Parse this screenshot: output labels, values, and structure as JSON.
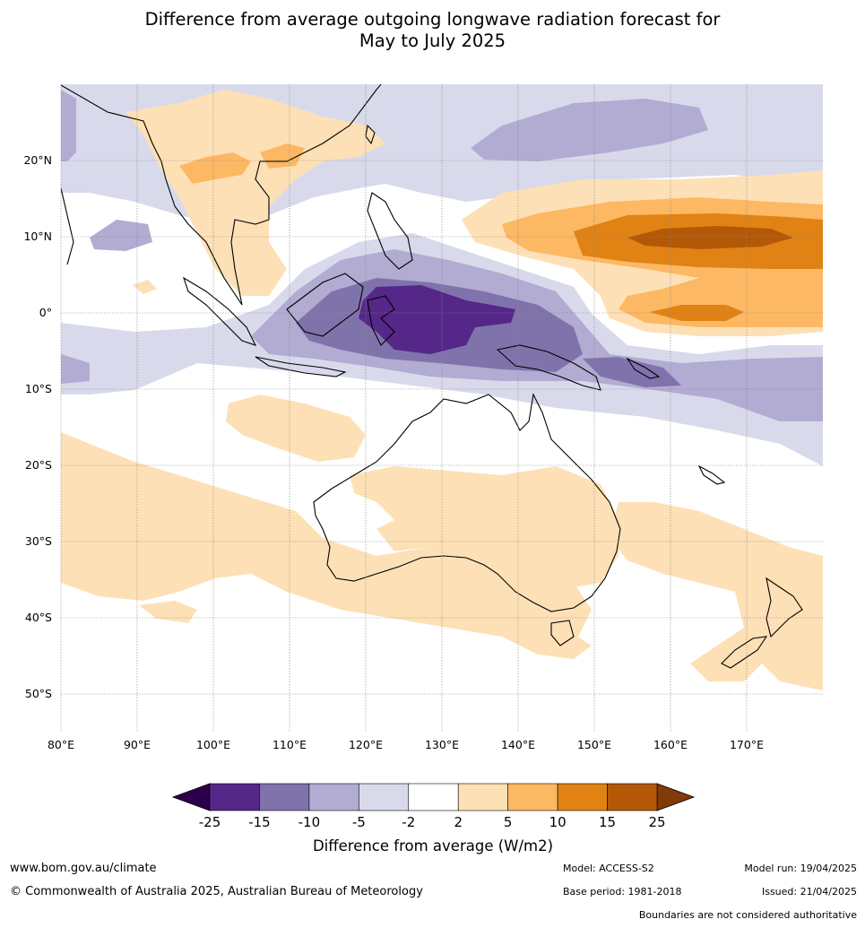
{
  "title_line1": "Difference from average outgoing longwave radiation forecast for",
  "title_line2": "May to July 2025",
  "lat_labels": [
    "20°N",
    "10°N",
    "0°",
    "10°S",
    "20°S",
    "30°S",
    "40°S",
    "50°S"
  ],
  "lon_labels": [
    "80°E",
    "90°E",
    "100°E",
    "110°E",
    "120°E",
    "130°E",
    "140°E",
    "150°E",
    "160°E",
    "170°E"
  ],
  "colorbar": {
    "ticks": [
      "-25",
      "-15",
      "-10",
      "-5",
      "-2",
      "2",
      "5",
      "10",
      "15",
      "25"
    ],
    "colors": [
      "#542788",
      "#8073ac",
      "#b2abd2",
      "#d8daeb",
      "#ffffff",
      "#fee0b6",
      "#fdb863",
      "#e08214",
      "#b35806"
    ],
    "under_color": "#2d004b",
    "over_color": "#7f3b08",
    "label": "Difference from average (W/m2)"
  },
  "footer": {
    "website": "www.bom.gov.au/climate",
    "copyright": "© Commonwealth of Australia 2025, Australian Bureau of Meteorology",
    "model": "Model: ACCESS-S2",
    "base_period": "Base period: 1981-2018",
    "model_run": "Model run: 19/04/2025",
    "issued": "Issued: 21/04/2025",
    "boundaries": "Boundaries are not considered authoritative"
  }
}
